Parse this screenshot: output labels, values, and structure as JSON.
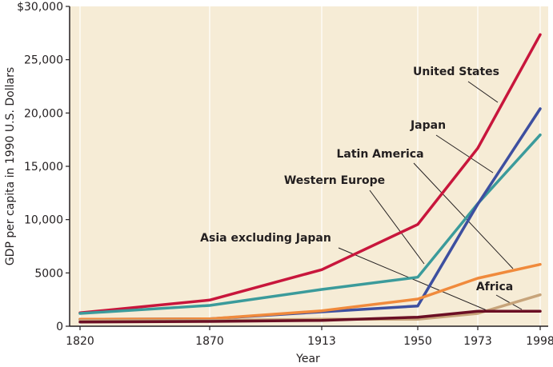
{
  "chart_data": {
    "type": "line",
    "title": "",
    "xlabel": "Year",
    "ylabel": "GDP per capita in 1990 U.S. Dollars",
    "x": [
      1820,
      1870,
      1913,
      1950,
      1973,
      1998
    ],
    "x_tick_labels": [
      "1820",
      "1870",
      "1913",
      "1950",
      "1973",
      "1998"
    ],
    "ylim": [
      0,
      30000
    ],
    "y_ticks": [
      0,
      5000,
      10000,
      15000,
      20000,
      25000,
      30000
    ],
    "y_tick_labels": [
      "0",
      "5000",
      "10,000",
      "15,000",
      "20,000",
      "25,000",
      "$30,000"
    ],
    "grid": "vertical lines at x ticks",
    "background": "#f6ecd6",
    "series": [
      {
        "name": "United States",
        "color": "#c8163c",
        "values": [
          1250,
          2450,
          5300,
          9550,
          16700,
          27350
        ]
      },
      {
        "name": "Western Europe",
        "color": "#3b9b9b",
        "values": [
          1200,
          1950,
          3450,
          4600,
          11500,
          17950
        ]
      },
      {
        "name": "Japan",
        "color": "#3d4fa0",
        "values": [
          650,
          700,
          1350,
          1900,
          11450,
          20400
        ]
      },
      {
        "name": "Latin America",
        "color": "#f08a3c",
        "values": [
          650,
          700,
          1450,
          2550,
          4500,
          5800
        ]
      },
      {
        "name": "Asia excluding Japan",
        "color": "#c7a47a",
        "values": [
          550,
          550,
          650,
          650,
          1200,
          2950
        ]
      },
      {
        "name": "Africa",
        "color": "#6b0f24",
        "values": [
          400,
          450,
          550,
          850,
          1400,
          1400
        ]
      }
    ],
    "annotations": [
      {
        "text": "United States",
        "series": "United States"
      },
      {
        "text": "Japan",
        "series": "Japan"
      },
      {
        "text": "Latin America",
        "series": "Latin America"
      },
      {
        "text": "Western Europe",
        "series": "Western Europe"
      },
      {
        "text": "Asia excluding Japan",
        "series": "Asia excluding Japan"
      },
      {
        "text": "Africa",
        "series": "Africa"
      }
    ]
  }
}
